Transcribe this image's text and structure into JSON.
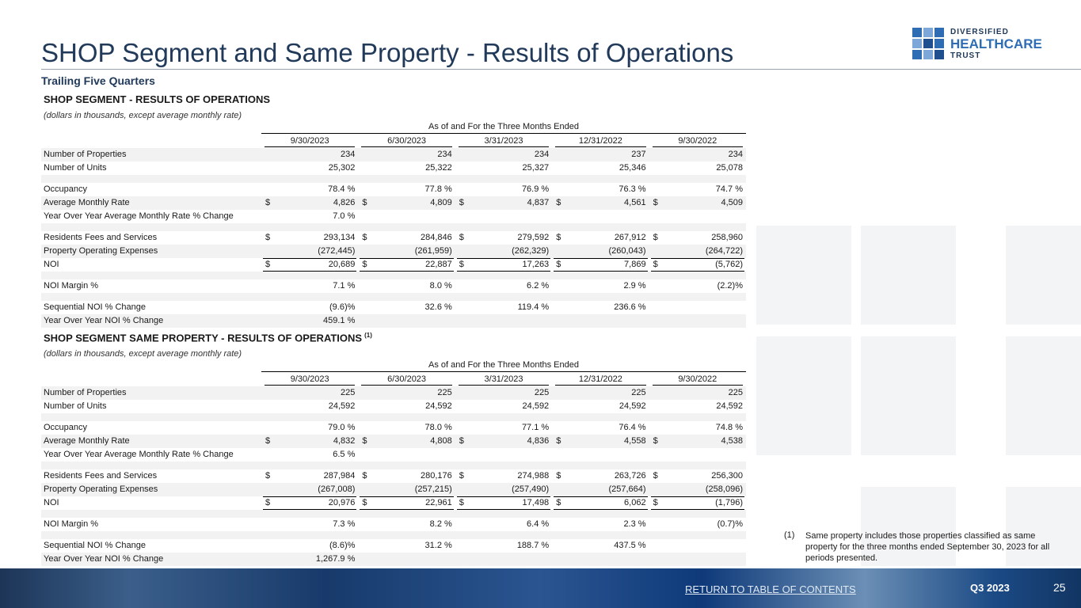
{
  "header": {
    "title": "SHOP Segment and Same Property - Results of Operations",
    "subtitle": "Trailing Five Quarters",
    "logo": [
      "DIVERSIFIED",
      "HEALTHCARE",
      "TRUST"
    ]
  },
  "sections": [
    {
      "heading": "SHOP SEGMENT -  RESULTS OF OPERATIONS",
      "note": "(dollars in thousands, except average monthly rate)",
      "group_header": "As of and For the Three Months Ended",
      "columns": [
        "9/30/2023",
        "6/30/2023",
        "3/31/2023",
        "12/31/2022",
        "9/30/2022"
      ],
      "rows": [
        {
          "label": "Number of Properties",
          "cells": [
            "234",
            "234",
            "234",
            "237",
            "234"
          ]
        },
        {
          "label": "Number of Units",
          "cells": [
            "25,302",
            "25,322",
            "25,327",
            "25,346",
            "25,078"
          ]
        },
        {
          "label": "Occupancy",
          "cells": [
            "78.4 %",
            "77.8 %",
            "76.9 %",
            "76.3 %",
            "74.7 %"
          ]
        },
        {
          "label": "Average Monthly Rate",
          "prefix": "$",
          "cells": [
            "4,826",
            "4,809",
            "4,837",
            "4,561",
            "4,509"
          ]
        },
        {
          "label": "Year Over Year Average Monthly Rate % Change",
          "cells": [
            "7.0 %"
          ]
        },
        {
          "label": "Residents Fees and Services",
          "prefix": "$",
          "cells": [
            "293,134",
            "284,846",
            "279,592",
            "267,912",
            "258,960"
          ]
        },
        {
          "label": "Property Operating Expenses",
          "cells": [
            "(272,445)",
            "(261,959)",
            "(262,329)",
            "(260,043)",
            "(264,722)"
          ]
        },
        {
          "label": "NOI",
          "prefix": "$",
          "cells": [
            "20,689",
            "22,887",
            "17,263",
            "7,869",
            "(5,762)"
          ]
        },
        {
          "label": "NOI Margin %",
          "cells": [
            "7.1 %",
            "8.0 %",
            "6.2 %",
            "2.9 %",
            "(2.2)%"
          ]
        },
        {
          "label": "Sequential NOI % Change",
          "cells": [
            "(9.6)%",
            "32.6 %",
            "119.4 %",
            "236.6 %"
          ]
        },
        {
          "label": "Year Over Year NOI % Change",
          "cells": [
            "459.1 %"
          ]
        }
      ]
    },
    {
      "heading": "SHOP SEGMENT SAME PROPERTY - RESULTS OF OPERATIONS",
      "heading_ref": "(1)",
      "note": "(dollars in thousands, except average monthly rate)",
      "group_header": "As of and For the Three Months Ended",
      "columns": [
        "9/30/2023",
        "6/30/2023",
        "3/31/2023",
        "12/31/2022",
        "9/30/2022"
      ],
      "rows": [
        {
          "label": "Number of Properties",
          "cells": [
            "225",
            "225",
            "225",
            "225",
            "225"
          ]
        },
        {
          "label": "Number of Units",
          "cells": [
            "24,592",
            "24,592",
            "24,592",
            "24,592",
            "24,592"
          ]
        },
        {
          "label": "Occupancy",
          "cells": [
            "79.0 %",
            "78.0 %",
            "77.1 %",
            "76.4 %",
            "74.8 %"
          ]
        },
        {
          "label": "Average Monthly Rate",
          "prefix": "$",
          "cells": [
            "4,832",
            "4,808",
            "4,836",
            "4,558",
            "4,538"
          ]
        },
        {
          "label": "Year Over Year Average Monthly Rate % Change",
          "cells": [
            "6.5 %"
          ]
        },
        {
          "label": "Residents Fees and Services",
          "prefix": "$",
          "cells": [
            "287,984",
            "280,176",
            "274,988",
            "263,726",
            "256,300"
          ]
        },
        {
          "label": "Property Operating Expenses",
          "cells": [
            "(267,008)",
            "(257,215)",
            "(257,490)",
            "(257,664)",
            "(258,096)"
          ]
        },
        {
          "label": "NOI",
          "prefix": "$",
          "cells": [
            "20,976",
            "22,961",
            "17,498",
            "6,062",
            "(1,796)"
          ]
        },
        {
          "label": "NOI Margin %",
          "cells": [
            "7.3 %",
            "8.2 %",
            "6.4 %",
            "2.3 %",
            "(0.7)%"
          ]
        },
        {
          "label": "Sequential NOI % Change",
          "cells": [
            "(8.6)%",
            "31.2 %",
            "188.7 %",
            "437.5 %"
          ]
        },
        {
          "label": "Year Over Year NOI % Change",
          "cells": [
            "1,267.9 %"
          ]
        }
      ]
    }
  ],
  "footnote": {
    "marker": "(1)",
    "text": "Same property includes those properties classified as same property for the three months ended September 30, 2023 for all periods presented."
  },
  "footer": {
    "link": "RETURN TO TABLE OF CONTENTS",
    "period": "Q3 2023",
    "page": "25"
  }
}
